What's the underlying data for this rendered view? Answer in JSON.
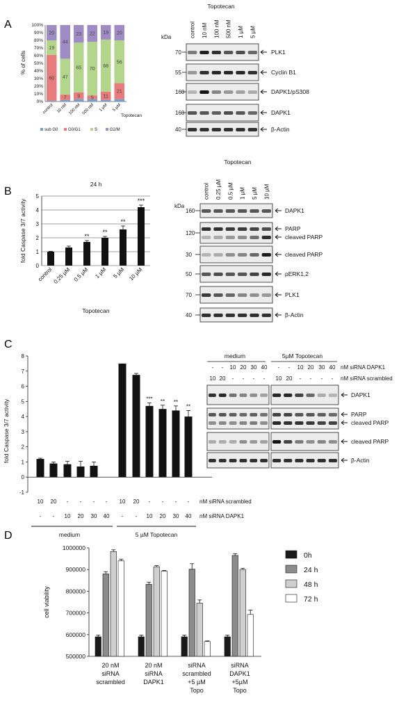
{
  "figure": {
    "panel_letters": [
      "A",
      "B",
      "C",
      "D"
    ]
  },
  "panel_a": {
    "chart_data": {
      "type": "bar",
      "stacked": true,
      "ylabel": "% of cells",
      "xgroup_label": "Topotecan",
      "y_ticks": [
        "0%",
        "10%",
        "20%",
        "30%",
        "40%",
        "50%",
        "60%",
        "70%",
        "80%",
        "90%",
        "100%"
      ],
      "ylim": [
        0,
        100
      ],
      "categories": [
        "control",
        "10 nM",
        "100 nM",
        "500 nM",
        "1 µM",
        "5 µM"
      ],
      "series": [
        {
          "name": "sub G0",
          "color": "#6fa0d0",
          "values": [
            1,
            2,
            3,
            3,
            2,
            3
          ]
        },
        {
          "name": "G0/G1",
          "color": "#e87b7b",
          "values": [
            60,
            7,
            9,
            5,
            11,
            21
          ]
        },
        {
          "name": "S",
          "color": "#b3d68c",
          "values": [
            19,
            47,
            65,
            70,
            68,
            56
          ]
        },
        {
          "name": "G2/M",
          "color": "#a08cc4",
          "values": [
            20,
            44,
            23,
            22,
            19,
            20
          ]
        }
      ],
      "data_labels": [
        [
          "",
          "60",
          "19",
          "20"
        ],
        [
          "",
          "7",
          "47",
          "44"
        ],
        [
          "",
          "9",
          "65",
          "23"
        ],
        [
          "",
          "5",
          "70",
          "22"
        ],
        [
          "",
          "11",
          "68",
          "19"
        ],
        [
          "",
          "21",
          "56",
          "20"
        ]
      ],
      "legend": [
        "sub G0",
        "G0/G1",
        "S",
        "G2/M"
      ],
      "legend_position": "bottom"
    },
    "blot": {
      "title": "Topotecan",
      "unit": "kDa",
      "lanes": [
        "control",
        "10 nM",
        "100 nM",
        "500 nM",
        "1 µM",
        "5 µM"
      ],
      "rows": [
        {
          "kda": "70",
          "label": "PLK1"
        },
        {
          "kda": "55",
          "label": "Cyclin B1"
        },
        {
          "kda": "160",
          "label": "DAPK1/pS308"
        },
        {
          "kda": "160",
          "label": "DAPK1"
        },
        {
          "kda": "40",
          "label": "β-Actin"
        }
      ]
    }
  },
  "panel_b": {
    "chart_data": {
      "type": "bar",
      "title": "24 h",
      "ylabel": "fold Caspase 3/7 activity",
      "xlabel": "Topotecan",
      "ylim": [
        0,
        5
      ],
      "y_ticks": [
        "0",
        "1",
        "2",
        "3",
        "4",
        "5"
      ],
      "categories": [
        "control",
        "0.25 µM",
        "0.5 µM",
        "1 µM",
        "5 µM",
        "10 µM"
      ],
      "values": [
        1.0,
        1.3,
        1.7,
        2.0,
        2.6,
        4.2
      ],
      "errors": [
        0.03,
        0.1,
        0.1,
        0.1,
        0.25,
        0.15
      ],
      "significance": [
        "",
        "",
        "**",
        "**",
        "**",
        "***"
      ],
      "color": "#111111"
    },
    "blot": {
      "title": "Topotecan",
      "unit": "kDa",
      "lanes": [
        "control",
        "0.25 µM",
        "0.5 µM",
        "1 µM",
        "5 µM",
        "10 µM"
      ],
      "rows": [
        {
          "kda": "160",
          "labels": [
            "DAPK1"
          ]
        },
        {
          "kda": "120",
          "labels": [
            "PARP",
            "cleaved PARP"
          ]
        },
        {
          "kda": "30",
          "labels": [
            "cleaved PARP"
          ]
        },
        {
          "kda": "50",
          "labels": [
            "pERK1,2"
          ]
        },
        {
          "kda": "70",
          "labels": [
            "PLK1"
          ]
        },
        {
          "kda": "40",
          "labels": [
            "β-Actin"
          ]
        }
      ]
    }
  },
  "panel_c": {
    "chart_data": {
      "type": "bar",
      "ylabel": "fold Caspase 3/7 activity",
      "ylim": [
        -1,
        8
      ],
      "y_ticks": [
        "-1",
        "0",
        "1",
        "2",
        "3",
        "4",
        "5",
        "6",
        "7",
        "8"
      ],
      "row_scrambled": [
        "10",
        "20",
        "-",
        "-",
        "-",
        "-",
        "10",
        "20",
        "-",
        "-",
        "-",
        "-"
      ],
      "row_dapk1": [
        "-",
        "-",
        "10",
        "20",
        "30",
        "40",
        "-",
        "-",
        "10",
        "20",
        "30",
        "40"
      ],
      "row_scrambled_label": "nM siRNA scrambled",
      "row_dapk1_label": "nM siRNA DAPK1",
      "groups": [
        "medium",
        "5 µM Topotecan"
      ],
      "values": [
        1.2,
        0.9,
        0.85,
        0.7,
        0.75,
        0.0,
        7.5,
        6.75,
        4.7,
        4.5,
        4.4,
        4.0
      ],
      "errors": [
        0.05,
        0.1,
        0.2,
        0.35,
        0.25,
        0.0,
        0.0,
        0.1,
        0.2,
        0.25,
        0.3,
        0.4
      ],
      "significance": [
        "",
        "",
        "",
        "",
        "",
        "",
        "",
        "",
        "***",
        "**",
        "**",
        "**"
      ],
      "color": "#111111"
    },
    "blot": {
      "groups": [
        "medium",
        "5µM Topotecan"
      ],
      "row_dapk1": [
        "-",
        "-",
        "10",
        "20",
        "30",
        "40",
        "-",
        "-",
        "10",
        "20",
        "30",
        "40"
      ],
      "row_dapk1_label": "nM siRNA DAPK1",
      "row_scrambled": [
        "10",
        "20",
        "-",
        "-",
        "-",
        "-",
        "10",
        "20",
        "-",
        "-",
        "-",
        "-"
      ],
      "row_scrambled_label": "nM siRNA scrambled",
      "rows": [
        {
          "labels": [
            "DAPK1"
          ]
        },
        {
          "labels": [
            "PARP",
            "cleaved PARP"
          ]
        },
        {
          "labels": [
            "cleaved PARP"
          ]
        },
        {
          "labels": [
            "β-Actin"
          ]
        }
      ]
    }
  },
  "panel_d": {
    "chart_data": {
      "type": "bar",
      "ylabel": "cell viability",
      "ylim": [
        500000,
        1000000
      ],
      "y_ticks": [
        "500000",
        "600000",
        "700000",
        "800000",
        "900000",
        "1000000"
      ],
      "category_labels": [
        [
          "20 nM",
          "siRNA",
          "scrambled"
        ],
        [
          "20 nM",
          "siRNA",
          "DAPK1"
        ],
        [
          "siRNA",
          "scrambled",
          "+5 µM",
          "Topo"
        ],
        [
          "siRNA",
          "DAPK1",
          "+5µM",
          "Topo"
        ]
      ],
      "series": [
        {
          "name": "0h",
          "color": "#1a1a1a",
          "values": [
            590000,
            590000,
            590000,
            590000
          ],
          "errors": [
            8000,
            8000,
            8000,
            8000
          ]
        },
        {
          "name": "24 h",
          "color": "#8c8c8c",
          "values": [
            880000,
            832000,
            902000,
            965000
          ],
          "errors": [
            10000,
            10000,
            25000,
            8000
          ]
        },
        {
          "name": "48 h",
          "color": "#cfcfcf",
          "values": [
            983000,
            913000,
            745000,
            900000
          ],
          "errors": [
            8000,
            5000,
            15000,
            6000
          ]
        },
        {
          "name": "72 h",
          "color": "#ffffff",
          "values": [
            940000,
            893000,
            568000,
            693000
          ],
          "errors": [
            8000,
            3000,
            3000,
            20000
          ]
        }
      ],
      "legend": [
        "0h",
        "24 h",
        "48 h",
        "72 h"
      ],
      "legend_position": "right"
    }
  }
}
